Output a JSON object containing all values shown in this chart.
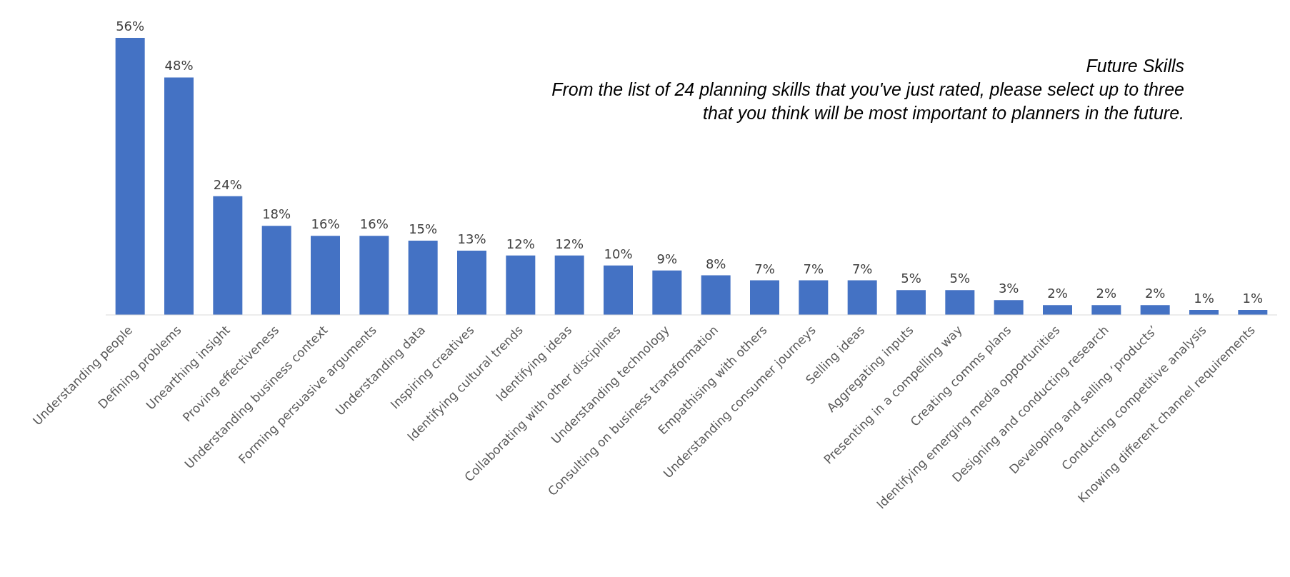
{
  "chart_data": {
    "type": "bar",
    "title": "Future Skills",
    "subtitle": "From the list of 24 planning skills that you've just rated, please select up to three that you think will  be most important to planners in the future.",
    "categories": [
      "Understanding people",
      "Defining problems",
      "Unearthing insight",
      "Proving effectiveness",
      "Understanding business context",
      "Forming persuasive arguments",
      "Understanding data",
      "Inspiring creatives",
      "Identifying cultural trends",
      "Identifying ideas",
      "Collaborating with other disciplines",
      "Understanding technology",
      "Consulting on business transformation",
      "Empathising with others",
      "Understanding consumer journeys",
      "Selling ideas",
      "Aggregating inputs",
      "Presenting in a compelling way",
      "Creating comms plans",
      "Identifying emerging media opportunities",
      "Designing and conducting research",
      "Developing and selling ‘products’",
      "Conducting competitive analysis",
      "Knowing different channel requirements"
    ],
    "values": [
      56,
      48,
      24,
      18,
      16,
      16,
      15,
      13,
      12,
      12,
      10,
      9,
      8,
      7,
      7,
      7,
      5,
      5,
      3,
      2,
      2,
      2,
      1,
      1
    ],
    "value_labels": [
      "56%",
      "48%",
      "24%",
      "18%",
      "16%",
      "16%",
      "15%",
      "13%",
      "12%",
      "12%",
      "10%",
      "9%",
      "8%",
      "7%",
      "7%",
      "7%",
      "5%",
      "5%",
      "3%",
      "2%",
      "2%",
      "2%",
      "1%",
      "1%"
    ],
    "color": "#4472c4",
    "tick_labels": "x",
    "grid": false,
    "legend": false
  }
}
